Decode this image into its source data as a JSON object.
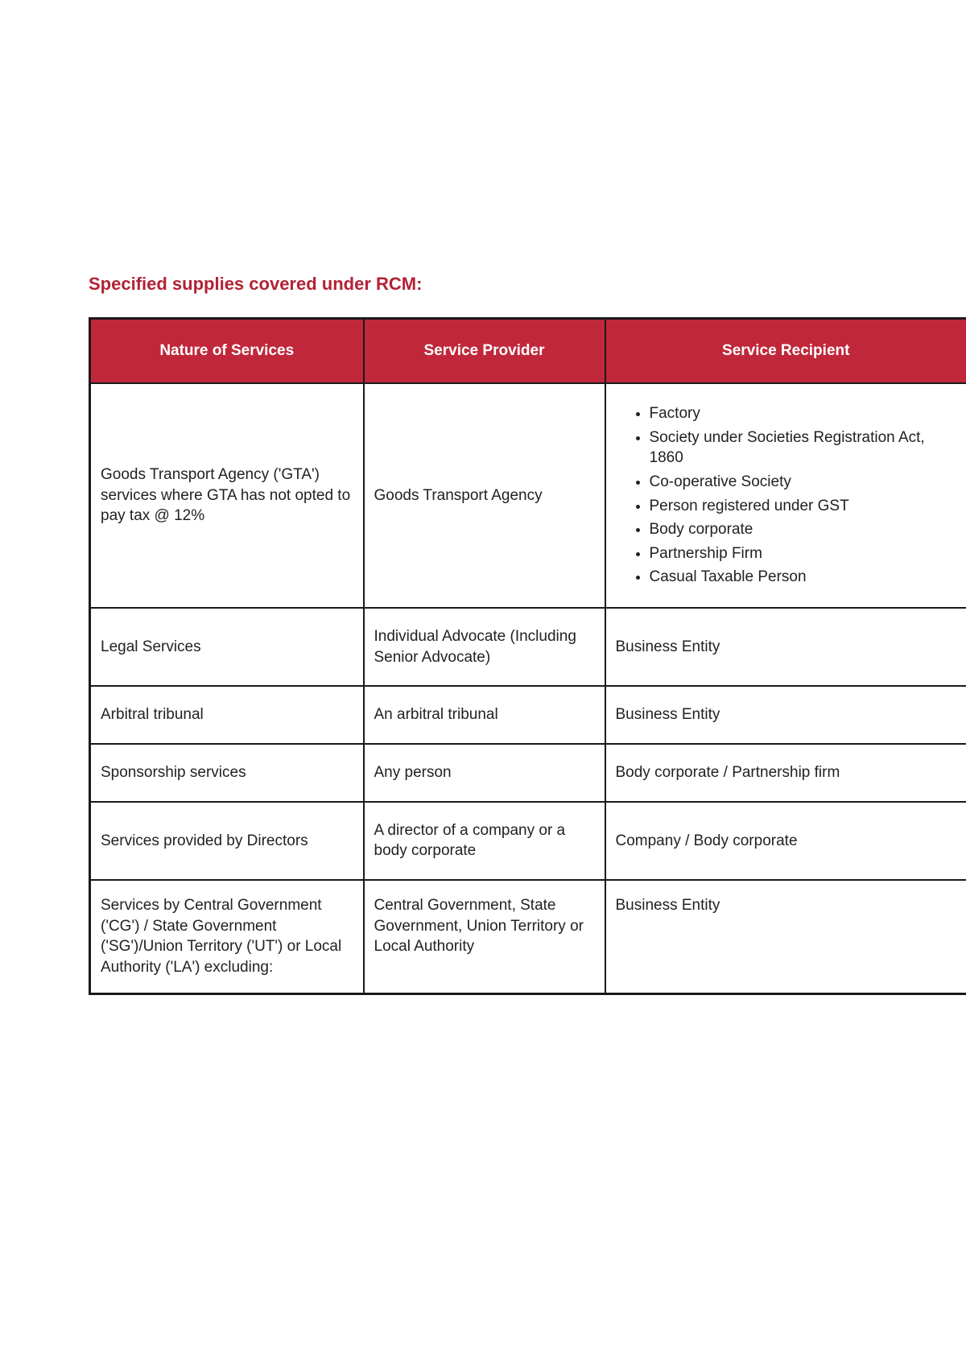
{
  "title": "Specified supplies covered under RCM:",
  "table": {
    "headers": [
      "Nature of Services",
      "Service Provider",
      "Service Recipient"
    ],
    "header_bg": "#c1273a",
    "header_fg": "#ffffff",
    "border_color": "#1a1a1a",
    "rows": [
      {
        "nature": "Goods Transport Agency ('GTA') services where GTA has not opted to pay tax @ 12%",
        "provider": "Goods Transport Agency",
        "recipient_type": "list",
        "recipient_items": [
          "Factory",
          "Society under Societies Registration Act, 1860",
          "Co-operative Society",
          "Person registered under GST",
          "Body corporate",
          "Partnership Firm",
          "Casual Taxable Person"
        ]
      },
      {
        "nature": "Legal Services",
        "provider": "Individual Advocate (Including Senior Advocate)",
        "recipient_type": "text",
        "recipient": "Business Entity"
      },
      {
        "nature": "Arbitral tribunal",
        "provider": "An arbitral tribunal",
        "recipient_type": "text",
        "recipient": "Business Entity"
      },
      {
        "nature": "Sponsorship services",
        "provider": "Any person",
        "recipient_type": "text",
        "recipient": "Body corporate / Partnership firm"
      },
      {
        "nature": "Services provided by Directors",
        "provider": "A director of a company or a body corporate",
        "recipient_type": "text",
        "recipient": "Company / Body corporate"
      },
      {
        "nature": "Services by Central Government ('CG') / State Government ('SG')/Union Territory ('UT') or Local Authority ('LA') excluding:",
        "provider": "Central Government, State Government, Union Territory or Local Authority",
        "recipient_type": "text",
        "recipient": "Business Entity"
      }
    ]
  }
}
